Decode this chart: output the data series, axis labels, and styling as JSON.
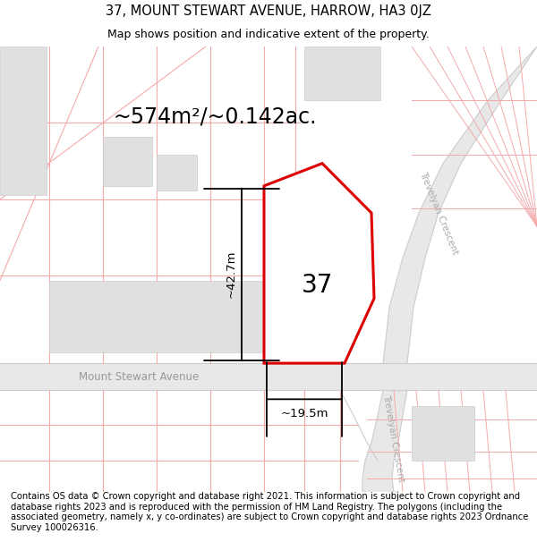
{
  "title_line1": "37, MOUNT STEWART AVENUE, HARROW, HA3 0JZ",
  "title_line2": "Map shows position and indicative extent of the property.",
  "footer_text": "Contains OS data © Crown copyright and database right 2021. This information is subject to Crown copyright and database rights 2023 and is reproduced with the permission of HM Land Registry. The polygons (including the associated geometry, namely x, y co-ordinates) are subject to Crown copyright and database rights 2023 Ordnance Survey 100026316.",
  "area_label": "~574m²/~0.142ac.",
  "dim_vertical": "~42.7m",
  "dim_horizontal": "~19.5m",
  "plot_number": "37",
  "street_name": "Mount Stewart Avenue",
  "road_name_upper": "Trevelyan Crescent",
  "road_name_lower": "Trevelyan Crescent",
  "bg_color": "#ffffff",
  "map_bg": "#ffffff",
  "road_fill": "#e8e8e8",
  "plot_outline_color": "#dd0000",
  "plot_fill": "#ffffff",
  "grid_line_color": "#f5aaaa",
  "road_line_color": "#cccccc",
  "building_fill": "#e0e0e0",
  "building_edge": "#cccccc",
  "title_fontsize": 10.5,
  "subtitle_fontsize": 9,
  "footer_fontsize": 7.2,
  "area_fontsize": 17,
  "dim_fontsize": 9.5,
  "plot_label_fontsize": 20,
  "street_fontsize": 8.5,
  "road_label_fontsize": 7.5
}
